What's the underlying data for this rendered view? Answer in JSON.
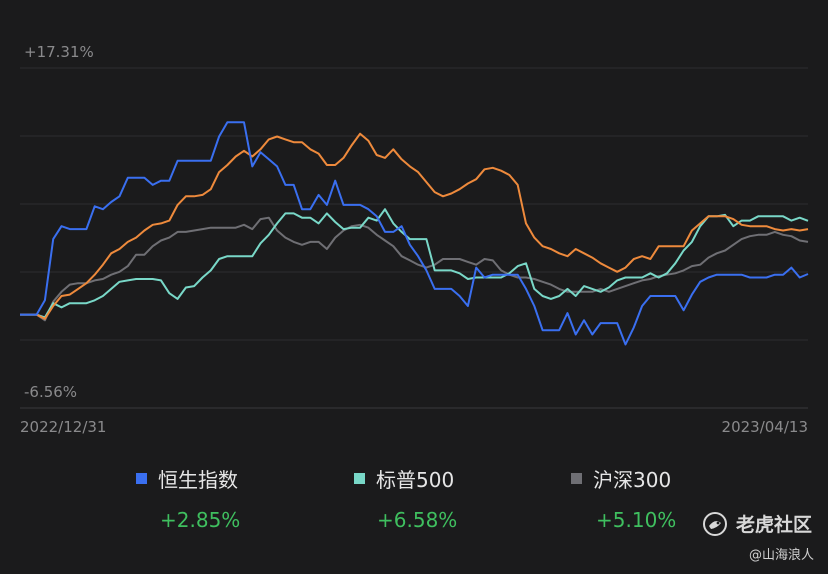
{
  "chart_data": {
    "type": "line",
    "y_top_label": "+17.31%",
    "y_bottom_label": "-6.56%",
    "ylim": [
      -6.56,
      17.31
    ],
    "x_start_label": "2022/12/31",
    "x_end_label": "2023/04/13",
    "grid": true,
    "series": [
      {
        "name": "恒生指数",
        "color": "#3a6ff0",
        "final": "+2.85%",
        "values": [
          0,
          0,
          0,
          1.0,
          5.3,
          6.2,
          6.0,
          6.0,
          6.0,
          7.6,
          7.4,
          7.9,
          8.3,
          9.6,
          9.6,
          9.6,
          9.1,
          9.4,
          9.4,
          10.8,
          10.8,
          10.8,
          10.8,
          10.8,
          12.5,
          13.5,
          13.5,
          13.5,
          10.4,
          11.4,
          10.9,
          10.4,
          9.1,
          9.1,
          7.4,
          7.4,
          8.4,
          7.7,
          9.4,
          7.7,
          7.7,
          7.7,
          7.4,
          6.9,
          5.8,
          5.8,
          6.2,
          4.9,
          4.1,
          3.1,
          1.8,
          1.8,
          1.8,
          1.3,
          0.6,
          3.3,
          2.6,
          2.8,
          2.8,
          2.8,
          2.8,
          1.8,
          0.6,
          -1.1,
          -1.1,
          -1.1,
          0.1,
          -1.4,
          -0.4,
          -1.4,
          -0.6,
          -0.6,
          -0.6,
          -2.1,
          -0.9,
          0.6,
          1.3,
          1.3,
          1.3,
          1.3,
          0.3,
          1.4,
          2.3,
          2.6,
          2.8,
          2.8,
          2.8,
          2.8,
          2.6,
          2.6,
          2.6,
          2.8,
          2.8,
          3.3,
          2.6,
          2.85
        ]
      },
      {
        "name": "标普500",
        "color": "#79d8c8",
        "final": "+6.58%",
        "values": [
          0,
          0,
          0,
          -0.2,
          0.8,
          0.5,
          0.8,
          0.8,
          0.8,
          1.0,
          1.3,
          1.8,
          2.3,
          2.4,
          2.5,
          2.5,
          2.5,
          2.4,
          1.5,
          1.1,
          1.9,
          2.0,
          2.6,
          3.1,
          3.9,
          4.1,
          4.1,
          4.1,
          4.1,
          5.0,
          5.6,
          6.4,
          7.1,
          7.1,
          6.8,
          6.8,
          6.4,
          7.1,
          6.5,
          6.0,
          6.1,
          6.1,
          6.8,
          6.6,
          7.4,
          6.4,
          5.8,
          5.3,
          5.3,
          5.3,
          3.1,
          3.1,
          3.1,
          2.9,
          2.5,
          2.6,
          2.6,
          2.6,
          2.6,
          2.9,
          3.4,
          3.6,
          1.8,
          1.3,
          1.1,
          1.3,
          1.8,
          1.3,
          2.0,
          1.8,
          1.6,
          1.9,
          2.4,
          2.6,
          2.6,
          2.6,
          2.9,
          2.6,
          2.9,
          3.6,
          4.5,
          5.1,
          6.2,
          6.9,
          6.9,
          7.0,
          6.2,
          6.6,
          6.6,
          6.9,
          6.9,
          6.9,
          6.9,
          6.6,
          6.8,
          6.58
        ]
      },
      {
        "name": "沪深300",
        "color": "#6f6f74",
        "final": "+5.10%",
        "values": [
          0,
          0,
          0,
          -0.4,
          0.9,
          1.6,
          2.1,
          2.2,
          2.2,
          2.4,
          2.5,
          2.8,
          3.0,
          3.4,
          4.2,
          4.2,
          4.8,
          5.2,
          5.4,
          5.8,
          5.8,
          5.9,
          6.0,
          6.1,
          6.1,
          6.1,
          6.1,
          6.3,
          6.0,
          6.7,
          6.8,
          5.9,
          5.4,
          5.1,
          4.9,
          5.1,
          5.1,
          4.6,
          5.4,
          5.9,
          6.2,
          6.3,
          6.1,
          5.6,
          5.2,
          4.8,
          4.1,
          3.8,
          3.5,
          3.3,
          3.5,
          3.9,
          3.9,
          3.9,
          3.7,
          3.5,
          3.9,
          3.8,
          3.1,
          2.8,
          2.6,
          2.6,
          2.5,
          2.3,
          2.1,
          1.8,
          1.6,
          1.6,
          1.6,
          1.6,
          1.8,
          1.6,
          1.8,
          2.0,
          2.2,
          2.4,
          2.5,
          2.7,
          2.8,
          2.9,
          3.1,
          3.4,
          3.5,
          4.0,
          4.3,
          4.5,
          4.9,
          5.3,
          5.5,
          5.6,
          5.6,
          5.8,
          5.6,
          5.5,
          5.2,
          5.1
        ]
      },
      {
        "name": "",
        "color": "#ee8a3c",
        "final": "",
        "values": [
          0,
          0,
          0,
          -0.3,
          0.6,
          1.3,
          1.4,
          1.8,
          2.2,
          2.8,
          3.5,
          4.3,
          4.6,
          5.1,
          5.4,
          5.9,
          6.3,
          6.4,
          6.6,
          7.7,
          8.3,
          8.3,
          8.4,
          8.8,
          10.0,
          10.5,
          11.1,
          11.5,
          11.1,
          11.6,
          12.3,
          12.5,
          12.3,
          12.1,
          12.1,
          11.6,
          11.3,
          10.5,
          10.5,
          11.0,
          11.9,
          12.7,
          12.2,
          11.2,
          11.0,
          11.6,
          10.9,
          10.4,
          10.0,
          9.3,
          8.6,
          8.3,
          8.5,
          8.8,
          9.2,
          9.5,
          10.2,
          10.3,
          10.1,
          9.8,
          9.1,
          6.4,
          5.4,
          4.8,
          4.6,
          4.3,
          4.1,
          4.6,
          4.3,
          4.0,
          3.6,
          3.3,
          3.0,
          3.3,
          3.9,
          4.1,
          3.9,
          4.8,
          4.8,
          4.8,
          4.8,
          5.9,
          6.4,
          6.9,
          6.9,
          6.9,
          6.7,
          6.3,
          6.2,
          6.2,
          6.2,
          6.0,
          5.9,
          6.0,
          5.9,
          6.0
        ]
      }
    ]
  },
  "watermark": {
    "name": "老虎社区",
    "author": "@山海浪人"
  }
}
